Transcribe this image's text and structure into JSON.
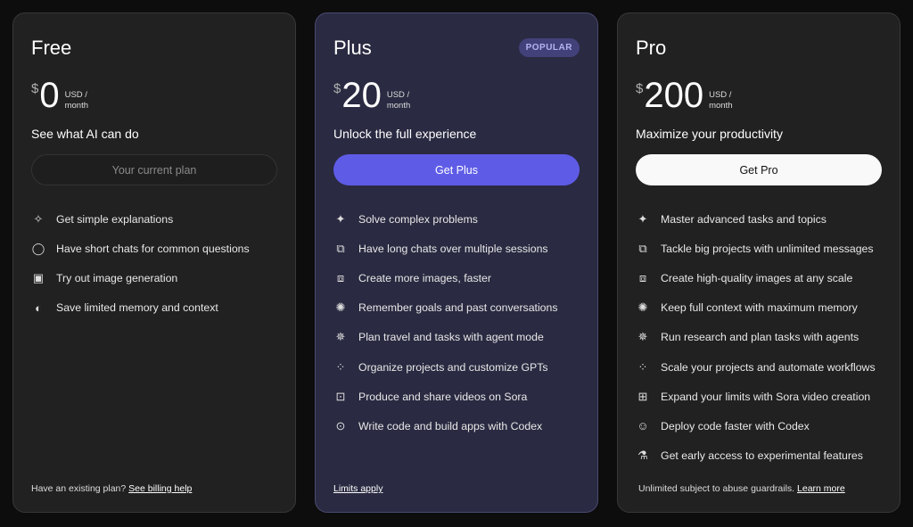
{
  "colors": {
    "background": "#0d0d0d",
    "card": "#212121",
    "plus_card": "#2a2a42",
    "plus_accent": "#5e5ce6",
    "badge": "#43417a"
  },
  "plans": [
    {
      "id": "free",
      "name": "Free",
      "currency": "$",
      "amount": "0",
      "period_line1": "USD /",
      "period_line2": "month",
      "tagline": "See what AI can do",
      "button": "Your current plan",
      "button_style": "current",
      "features": [
        {
          "icon": "sparkle-icon",
          "text": "Get simple explanations"
        },
        {
          "icon": "chat-bubble-icon",
          "text": "Have short chats for common questions"
        },
        {
          "icon": "image-icon",
          "text": "Try out image generation"
        },
        {
          "icon": "memory-icon",
          "text": "Save limited memory and context"
        }
      ],
      "footer_text": "Have an existing plan? ",
      "footer_link": "See billing help"
    },
    {
      "id": "plus",
      "name": "Plus",
      "badge": "POPULAR",
      "currency": "$",
      "amount": "20",
      "period_line1": "USD /",
      "period_line2": "month",
      "tagline": "Unlock the full experience",
      "button": "Get Plus",
      "button_style": "plus",
      "features": [
        {
          "icon": "sparkles-icon",
          "text": "Solve complex problems"
        },
        {
          "icon": "chats-icon",
          "text": "Have long chats over multiple sessions"
        },
        {
          "icon": "images-icon",
          "text": "Create more images, faster"
        },
        {
          "icon": "brain-icon",
          "text": "Remember goals and past conversations"
        },
        {
          "icon": "telescope-icon",
          "text": "Plan travel and tasks with agent mode"
        },
        {
          "icon": "apps-icon",
          "text": "Organize projects and customize GPTs"
        },
        {
          "icon": "video-icon",
          "text": "Produce and share videos on Sora"
        },
        {
          "icon": "terminal-icon",
          "text": "Write code and build apps with Codex"
        }
      ],
      "footer_text": "",
      "footer_link": "Limits apply"
    },
    {
      "id": "pro",
      "name": "Pro",
      "currency": "$",
      "amount": "200",
      "period_line1": "USD /",
      "period_line2": "month",
      "tagline": "Maximize your productivity",
      "button": "Get Pro",
      "button_style": "pro",
      "features": [
        {
          "icon": "sparkles-icon",
          "text": "Master advanced tasks and topics"
        },
        {
          "icon": "chats-icon",
          "text": "Tackle big projects with unlimited messages"
        },
        {
          "icon": "images-icon",
          "text": "Create high-quality images at any scale"
        },
        {
          "icon": "brain-icon",
          "text": "Keep full context with maximum memory"
        },
        {
          "icon": "telescope-icon",
          "text": "Run research and plan tasks with agents"
        },
        {
          "icon": "apps-icon",
          "text": "Scale your projects and automate workflows"
        },
        {
          "icon": "video-plus-icon",
          "text": "Expand your limits with Sora video creation"
        },
        {
          "icon": "codex-icon",
          "text": "Deploy code faster with Codex"
        },
        {
          "icon": "flask-icon",
          "text": "Get early access to experimental features"
        }
      ],
      "footer_text": "Unlimited subject to abuse guardrails. ",
      "footer_link": "Learn more"
    }
  ]
}
